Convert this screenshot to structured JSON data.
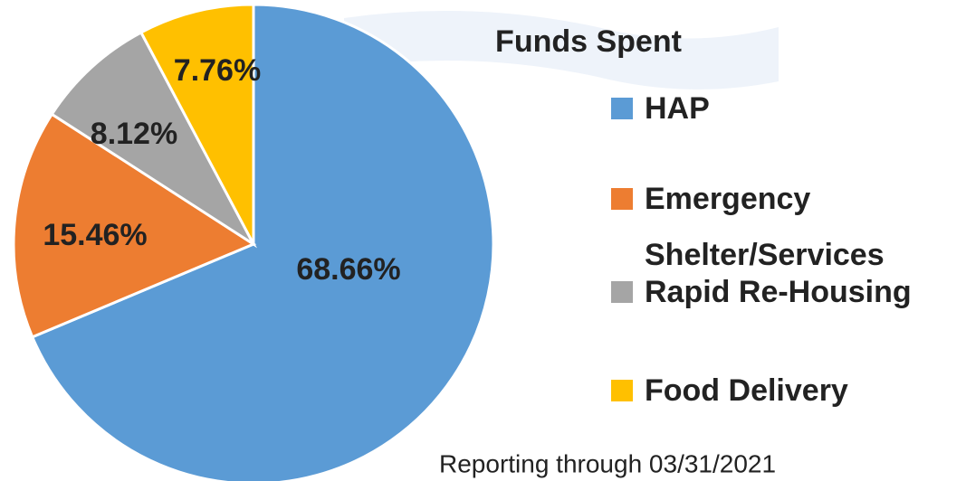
{
  "chart_data": {
    "type": "pie",
    "title": "Funds Spent",
    "categories": [
      "HAP",
      "Emergency Shelter/Services",
      "Rapid Re-Housing",
      "Food Delivery"
    ],
    "values": [
      68.66,
      15.46,
      8.12,
      7.76
    ],
    "value_labels": [
      "68.66%",
      "15.46%",
      "8.12%",
      "7.76%"
    ],
    "colors": [
      "#5b9bd5",
      "#ed7d31",
      "#a5a5a5",
      "#ffc000"
    ],
    "legend": "right",
    "footnote": "Reporting through 03/31/2021"
  }
}
